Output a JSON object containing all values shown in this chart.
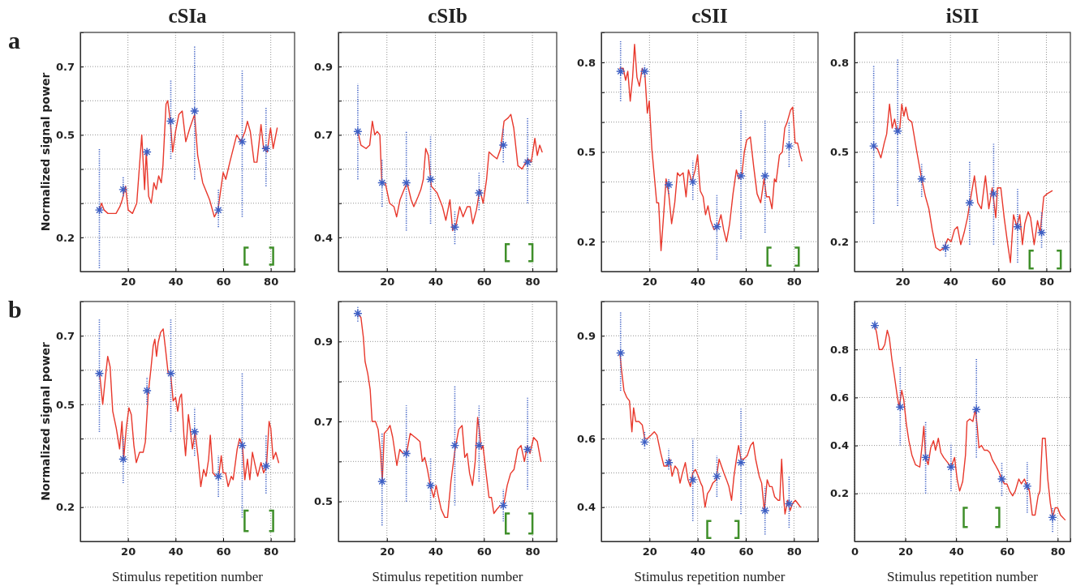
{
  "chart_data": [
    {
      "type": "line",
      "title": "cSIa",
      "ylabel": "Normalized signal power",
      "annotations": [
        "a"
      ],
      "grid": true,
      "xlim": [
        0,
        90
      ],
      "xticks": [
        20,
        40,
        60,
        80
      ],
      "ylim": [
        0.1,
        0.8
      ],
      "yticks": [
        0.2,
        {
          "value": 0.3,
          "label": null
        },
        {
          "value": 0.4,
          "label": null
        },
        0.5,
        {
          "value": 0.6,
          "label": null
        },
        0.7
      ],
      "series": [
        {
          "type": "line",
          "color": "#e8382c",
          "marker": "none",
          "x": [
            8,
            8.9,
            10,
            11.6,
            13,
            15,
            16.6,
            17.6,
            19,
            20.1,
            21.9,
            23.7,
            25.8,
            27,
            27.7,
            28.7,
            29.8,
            30.9,
            31.9,
            32.9,
            34,
            34.7,
            36,
            36.7,
            37.8,
            38.8,
            40,
            41.4,
            42.8,
            44.3,
            46,
            48,
            49.3,
            51.4,
            54.3,
            56.3,
            57.8,
            60,
            61.1,
            62.8,
            65.7,
            67.4,
            69.2,
            70.2,
            71.4,
            73,
            74.2,
            75.9,
            77,
            78.5,
            79.9,
            81,
            82.7
          ],
          "values": [
            0.28,
            0.3,
            0.28,
            0.27,
            0.27,
            0.27,
            0.29,
            0.31,
            0.35,
            0.28,
            0.27,
            0.3,
            0.5,
            0.34,
            0.45,
            0.32,
            0.3,
            0.36,
            0.34,
            0.38,
            0.36,
            0.41,
            0.59,
            0.6,
            0.54,
            0.45,
            0.51,
            0.56,
            0.57,
            0.48,
            0.52,
            0.56,
            0.44,
            0.36,
            0.31,
            0.26,
            0.28,
            0.39,
            0.37,
            0.42,
            0.5,
            0.48,
            0.51,
            0.54,
            0.51,
            0.42,
            0.42,
            0.53,
            0.46,
            0.45,
            0.52,
            0.46,
            0.52
          ]
        },
        {
          "type": "scatter",
          "color": "#3d5fc4",
          "marker": "cross",
          "x": [
            8,
            18,
            28,
            38,
            48,
            58,
            68,
            78
          ],
          "values": [
            0.28,
            0.34,
            0.45,
            0.54,
            0.57,
            0.28,
            0.48,
            0.46
          ],
          "errors": [
            [
              0.11,
              0.46
            ],
            [
              0.32,
              0.38
            ],
            [
              0.44,
              0.46
            ],
            [
              0.43,
              0.66
            ],
            [
              0.37,
              0.76
            ],
            [
              0.23,
              0.34
            ],
            [
              0.26,
              0.69
            ],
            [
              0.35,
              0.58
            ]
          ]
        }
      ]
    },
    {
      "type": "line",
      "title": "cSIb",
      "grid": true,
      "xlim": [
        0,
        90
      ],
      "xticks": [
        20,
        40,
        60,
        80
      ],
      "ylim": [
        0.3,
        1.0
      ],
      "yticks": [
        0.4,
        {
          "value": 0.5,
          "label": null
        },
        {
          "value": 0.6,
          "label": null
        },
        0.7,
        {
          "value": 0.8,
          "label": null
        },
        0.9
      ],
      "series": [
        {
          "type": "line",
          "color": "#e8382c",
          "marker": "none",
          "x": [
            8,
            9.3,
            11.4,
            12.9,
            14,
            15,
            16,
            17.1,
            17.9,
            19.3,
            21.1,
            22.9,
            24,
            25.4,
            27.1,
            28.3,
            30,
            31.1,
            32.9,
            34,
            35,
            36,
            37.1,
            38.3,
            40.7,
            42.9,
            44.3,
            46,
            47.1,
            48.6,
            50,
            51.4,
            53.1,
            54.3,
            55.4,
            56.9,
            58.3,
            59.7,
            61.1,
            62.1,
            63.6,
            65.4,
            66.9,
            68.3,
            70,
            71.1,
            72.3,
            74,
            75.7,
            78.1,
            79.5,
            81,
            82,
            83,
            84
          ],
          "values": [
            0.71,
            0.67,
            0.66,
            0.67,
            0.74,
            0.7,
            0.71,
            0.7,
            0.56,
            0.56,
            0.5,
            0.49,
            0.46,
            0.51,
            0.54,
            0.56,
            0.51,
            0.49,
            0.52,
            0.54,
            0.57,
            0.66,
            0.64,
            0.55,
            0.53,
            0.49,
            0.45,
            0.51,
            0.42,
            0.44,
            0.49,
            0.46,
            0.49,
            0.49,
            0.44,
            0.48,
            0.54,
            0.5,
            0.57,
            0.65,
            0.64,
            0.63,
            0.66,
            0.74,
            0.75,
            0.76,
            0.72,
            0.61,
            0.6,
            0.63,
            0.62,
            0.69,
            0.64,
            0.67,
            0.65
          ]
        },
        {
          "type": "scatter",
          "color": "#3d5fc4",
          "marker": "cross",
          "x": [
            8,
            18,
            28,
            38,
            48,
            58,
            68,
            78
          ],
          "values": [
            0.71,
            0.56,
            0.56,
            0.57,
            0.43,
            0.53,
            0.67,
            0.62
          ],
          "errors": [
            [
              0.57,
              0.85
            ],
            [
              0.49,
              0.63
            ],
            [
              0.42,
              0.71
            ],
            [
              0.44,
              0.7
            ],
            [
              0.38,
              0.48
            ],
            [
              0.48,
              0.59
            ],
            [
              0.62,
              0.72
            ],
            [
              0.5,
              0.75
            ]
          ]
        }
      ]
    },
    {
      "type": "line",
      "title": "cSII",
      "grid": true,
      "xlim": [
        0,
        90
      ],
      "xticks": [
        20,
        40,
        60,
        80
      ],
      "ylim": [
        0.1,
        0.9
      ],
      "yticks": [
        0.2,
        {
          "value": 0.3,
          "label": null
        },
        {
          "value": 0.4,
          "label": null
        },
        0.5,
        {
          "value": 0.6,
          "label": null
        },
        {
          "value": 0.7,
          "label": null
        },
        0.8
      ],
      "series": [
        {
          "type": "line",
          "color": "#e8382c",
          "marker": "none",
          "x": [
            7.7,
            9.1,
            10.1,
            11,
            12,
            13,
            13.8,
            14.8,
            15.8,
            17,
            18.1,
            19.1,
            19.9,
            21,
            22,
            23,
            23.8,
            24.8,
            25.8,
            26.9,
            28,
            29.2,
            30.5,
            31.6,
            32.6,
            34,
            35.2,
            36.2,
            37.6,
            39,
            40,
            41.1,
            42.3,
            43.3,
            44.3,
            45.4,
            46.8,
            48.3,
            49.7,
            50.8,
            52,
            53.3,
            54.7,
            56.1,
            57.1,
            58.3,
            59.4,
            60.4,
            61.9,
            63.3,
            64.7,
            66.2,
            67.6,
            68.6,
            69.8,
            70.9,
            71.9,
            72.6,
            74,
            75.2,
            76.2,
            77.2,
            78.6,
            79.5,
            80.5,
            81.5,
            82.6,
            83.3
          ],
          "values": [
            0.78,
            0.78,
            0.74,
            0.77,
            0.67,
            0.75,
            0.86,
            0.75,
            0.72,
            0.78,
            0.76,
            0.63,
            0.67,
            0.51,
            0.42,
            0.33,
            0.33,
            0.17,
            0.28,
            0.41,
            0.36,
            0.26,
            0.33,
            0.43,
            0.42,
            0.43,
            0.35,
            0.44,
            0.4,
            0.44,
            0.49,
            0.37,
            0.35,
            0.29,
            0.32,
            0.27,
            0.24,
            0.25,
            0.29,
            0.24,
            0.2,
            0.26,
            0.36,
            0.44,
            0.41,
            0.42,
            0.5,
            0.54,
            0.55,
            0.45,
            0.36,
            0.33,
            0.41,
            0.35,
            0.35,
            0.31,
            0.41,
            0.4,
            0.49,
            0.5,
            0.58,
            0.6,
            0.64,
            0.65,
            0.53,
            0.53,
            0.49,
            0.47
          ]
        },
        {
          "type": "scatter",
          "color": "#3d5fc4",
          "marker": "cross",
          "x": [
            8,
            18,
            28,
            38,
            48,
            58,
            68,
            78
          ],
          "values": [
            0.77,
            0.77,
            0.39,
            0.4,
            0.25,
            0.42,
            0.42,
            0.52
          ],
          "errors": [
            [
              0.67,
              0.87
            ],
            [
              0.75,
              0.79
            ],
            [
              0.36,
              0.41
            ],
            [
              0.34,
              0.47
            ],
            [
              0.14,
              0.36
            ],
            [
              0.21,
              0.64
            ],
            [
              0.23,
              0.61
            ],
            [
              0.45,
              0.6
            ]
          ]
        }
      ]
    },
    {
      "type": "line",
      "title": "iSII",
      "grid": true,
      "xlim": [
        0,
        90
      ],
      "xticks": [
        20,
        40,
        60,
        80
      ],
      "ylim": [
        0.1,
        0.9
      ],
      "yticks": [
        0.2,
        {
          "value": 0.3,
          "label": null
        },
        {
          "value": 0.4,
          "label": null
        },
        0.5,
        {
          "value": 0.6,
          "label": null
        },
        {
          "value": 0.7,
          "label": null
        },
        0.8
      ],
      "series": [
        {
          "type": "line",
          "color": "#e8382c",
          "marker": "none",
          "x": [
            7.9,
            9.6,
            11,
            12.4,
            13.4,
            14.6,
            15.7,
            16.7,
            17.7,
            18.9,
            19.7,
            20.6,
            21.4,
            22.4,
            23.9,
            26,
            28,
            29.6,
            31,
            32.4,
            33.9,
            35.7,
            37.4,
            38.9,
            40.3,
            41.7,
            42.9,
            44.3,
            45.7,
            47.1,
            48.1,
            50,
            51.4,
            52.9,
            54.6,
            56,
            57.4,
            58.9,
            59.6,
            61,
            62.4,
            63.9,
            65,
            66.3,
            67.7,
            68.9,
            70,
            71,
            72.4,
            73.4,
            74.9,
            76.3,
            77.4,
            78.9,
            80.3,
            82.4
          ],
          "values": [
            0.52,
            0.51,
            0.48,
            0.53,
            0.56,
            0.66,
            0.58,
            0.61,
            0.57,
            0.58,
            0.66,
            0.62,
            0.65,
            0.61,
            0.6,
            0.5,
            0.41,
            0.35,
            0.31,
            0.24,
            0.18,
            0.17,
            0.18,
            0.21,
            0.2,
            0.24,
            0.25,
            0.19,
            0.23,
            0.28,
            0.33,
            0.42,
            0.33,
            0.31,
            0.42,
            0.31,
            0.38,
            0.28,
            0.38,
            0.38,
            0.28,
            0.19,
            0.13,
            0.29,
            0.25,
            0.29,
            0.19,
            0.26,
            0.3,
            0.28,
            0.19,
            0.27,
            0.23,
            0.35,
            0.36,
            0.37
          ]
        },
        {
          "type": "scatter",
          "color": "#3d5fc4",
          "marker": "cross",
          "x": [
            8,
            18,
            28,
            38,
            48,
            58,
            68,
            78
          ],
          "values": [
            0.52,
            0.57,
            0.41,
            0.18,
            0.33,
            0.36,
            0.25,
            0.23
          ],
          "errors": [
            [
              0.26,
              0.79
            ],
            [
              0.32,
              0.81
            ],
            [
              0.35,
              0.46
            ],
            [
              0.15,
              0.2
            ],
            [
              0.19,
              0.47
            ],
            [
              0.19,
              0.53
            ],
            [
              0.13,
              0.38
            ],
            [
              0.18,
              0.3
            ]
          ]
        }
      ]
    },
    {
      "type": "line",
      "xlabel": "Stimulus repetition number",
      "ylabel": "Normalized signal power",
      "annotations": [
        "b"
      ],
      "grid": true,
      "xlim": [
        0,
        90
      ],
      "xticks": [
        20,
        40,
        60,
        80
      ],
      "ylim": [
        0.1,
        0.8
      ],
      "yticks": [
        0.2,
        {
          "value": 0.3,
          "label": null
        },
        {
          "value": 0.4,
          "label": null
        },
        0.5,
        {
          "value": 0.6,
          "label": null
        },
        0.7
      ],
      "series": [
        {
          "type": "line",
          "color": "#e8382c",
          "marker": "none",
          "x": [
            8.1,
            9.4,
            10.4,
            11.5,
            12.5,
            13.6,
            15.1,
            16.5,
            17.5,
            18.2,
            19.3,
            20.4,
            21.4,
            22.5,
            23.5,
            24.9,
            26.4,
            27.3,
            28.5,
            29.6,
            30.6,
            31.3,
            32,
            32.7,
            33.7,
            34.8,
            35.8,
            36.9,
            37.9,
            39,
            40,
            40.9,
            41.8,
            42.5,
            43.5,
            44.2,
            45.4,
            46.1,
            47.1,
            48.2,
            49.4,
            50.6,
            51.8,
            52.8,
            53.9,
            54.6,
            55.7,
            57,
            58.1,
            59.2,
            60,
            61,
            62.1,
            63.4,
            64.2,
            65.9,
            66.9,
            68.1,
            69.1,
            70.2,
            71.2,
            72.3,
            73.5,
            74.5,
            75.9,
            77,
            78.2,
            79.3,
            80,
            81,
            82.1,
            83.3
          ],
          "values": [
            0.59,
            0.5,
            0.57,
            0.64,
            0.61,
            0.48,
            0.43,
            0.37,
            0.45,
            0.34,
            0.43,
            0.49,
            0.47,
            0.38,
            0.33,
            0.36,
            0.36,
            0.39,
            0.53,
            0.6,
            0.67,
            0.69,
            0.64,
            0.68,
            0.71,
            0.72,
            0.66,
            0.59,
            0.59,
            0.51,
            0.52,
            0.48,
            0.52,
            0.53,
            0.41,
            0.35,
            0.47,
            0.43,
            0.37,
            0.42,
            0.35,
            0.26,
            0.31,
            0.29,
            0.34,
            0.41,
            0.3,
            0.29,
            0.29,
            0.35,
            0.3,
            0.3,
            0.26,
            0.29,
            0.28,
            0.37,
            0.4,
            0.38,
            0.28,
            0.34,
            0.28,
            0.36,
            0.32,
            0.29,
            0.33,
            0.3,
            0.32,
            0.45,
            0.43,
            0.34,
            0.36,
            0.33
          ]
        },
        {
          "type": "scatter",
          "color": "#3d5fc4",
          "marker": "cross",
          "x": [
            8,
            18,
            28,
            38,
            48,
            58,
            68,
            78
          ],
          "values": [
            0.59,
            0.34,
            0.54,
            0.59,
            0.42,
            0.29,
            0.38,
            0.32
          ],
          "errors": [
            [
              0.42,
              0.75
            ],
            [
              0.27,
              0.41
            ],
            [
              0.5,
              0.58
            ],
            [
              0.42,
              0.75
            ],
            [
              0.35,
              0.49
            ],
            [
              0.23,
              0.35
            ],
            [
              0.17,
              0.59
            ],
            [
              0.24,
              0.41
            ]
          ]
        }
      ]
    },
    {
      "type": "line",
      "xlabel": "Stimulus repetition number",
      "grid": true,
      "xlim": [
        0,
        90
      ],
      "xticks": [
        20,
        40,
        60,
        80
      ],
      "ylim": [
        0.4,
        1.0
      ],
      "yticks": [
        {
          "value": 0.5,
          "label": "0.5"
        },
        {
          "value": 0.6,
          "label": null
        },
        0.7,
        {
          "value": 0.8,
          "label": null
        },
        0.9
      ],
      "series": [
        {
          "type": "line",
          "color": "#e8382c",
          "marker": "none",
          "x": [
            7.9,
            9.3,
            10.3,
            11,
            12.1,
            13.1,
            13.9,
            15.3,
            16.4,
            17.4,
            18.1,
            18.9,
            20.3,
            21.3,
            22.4,
            24.1,
            25.3,
            26.7,
            28.1,
            29.6,
            31.7,
            33.6,
            34.6,
            35.6,
            36.7,
            37.9,
            39.3,
            40.3,
            41.3,
            42.4,
            43.9,
            45,
            46.4,
            48.1,
            49.6,
            51,
            52.1,
            53.1,
            54.1,
            55.3,
            56.4,
            57.4,
            58.1,
            58.9,
            59.6,
            60.7,
            62.1,
            63.1,
            64.1,
            65.3,
            66.7,
            68.1,
            69.6,
            71,
            72.4,
            73.9,
            75.3,
            76.7,
            77.9,
            79,
            80.5,
            82,
            83.5
          ],
          "values": [
            0.97,
            0.96,
            0.91,
            0.85,
            0.82,
            0.78,
            0.7,
            0.7,
            0.68,
            0.62,
            0.55,
            0.67,
            0.68,
            0.69,
            0.66,
            0.59,
            0.63,
            0.62,
            0.62,
            0.67,
            0.66,
            0.65,
            0.6,
            0.61,
            0.58,
            0.54,
            0.51,
            0.54,
            0.51,
            0.48,
            0.46,
            0.46,
            0.55,
            0.63,
            0.68,
            0.69,
            0.61,
            0.62,
            0.57,
            0.54,
            0.6,
            0.71,
            0.68,
            0.63,
            0.64,
            0.58,
            0.51,
            0.51,
            0.47,
            0.48,
            0.49,
            0.49,
            0.54,
            0.57,
            0.58,
            0.63,
            0.64,
            0.6,
            0.64,
            0.62,
            0.66,
            0.65,
            0.6
          ]
        },
        {
          "type": "scatter",
          "color": "#3d5fc4",
          "marker": "cross",
          "x": [
            8,
            18,
            28,
            38,
            48,
            58,
            68,
            78
          ],
          "values": [
            0.97,
            0.55,
            0.62,
            0.54,
            0.64,
            0.64,
            0.49,
            0.63
          ],
          "errors": [
            [
              0.95,
              0.99
            ],
            [
              0.44,
              0.67
            ],
            [
              0.5,
              0.74
            ],
            [
              0.48,
              0.61
            ],
            [
              0.49,
              0.79
            ],
            [
              0.55,
              0.74
            ],
            [
              0.45,
              0.53
            ],
            [
              0.53,
              0.76
            ]
          ]
        }
      ]
    },
    {
      "type": "line",
      "xlabel": "Stimulus repetition number",
      "grid": true,
      "xlim": [
        0,
        90
      ],
      "xticks": [
        20,
        40,
        60,
        80
      ],
      "ylim": [
        0.3,
        1.0
      ],
      "yticks": [
        0.4,
        {
          "value": 0.5,
          "label": null
        },
        0.6,
        {
          "value": 0.7,
          "label": null
        },
        {
          "value": 0.8,
          "label": null
        },
        0.9
      ],
      "series": [
        {
          "type": "line",
          "color": "#e8382c",
          "marker": "none",
          "x": [
            7.7,
            8.4,
            9.4,
            10.6,
            11.7,
            12.7,
            13.4,
            14.3,
            15.6,
            17,
            18,
            19.1,
            20.6,
            22,
            23.1,
            24.6,
            26,
            27.4,
            28.4,
            29.4,
            30.6,
            31.7,
            32.7,
            33.7,
            34.9,
            36,
            37,
            38,
            39.1,
            40.3,
            41.3,
            42,
            43.1,
            44.1,
            45.1,
            46.3,
            47.7,
            48.9,
            49.9,
            50.9,
            52,
            53,
            54.1,
            55.1,
            56.3,
            57,
            58,
            59.1,
            60.6,
            62,
            63.1,
            64.1,
            65.6,
            66.6,
            67.7,
            68.9,
            69.9,
            70.9,
            72,
            73.4,
            74.1,
            74.9,
            75.7,
            76.3,
            77.4,
            78.4,
            79.4,
            80.6,
            81.7,
            82.7
          ],
          "values": [
            0.85,
            0.8,
            0.74,
            0.72,
            0.71,
            0.62,
            0.69,
            0.65,
            0.65,
            0.64,
            0.6,
            0.6,
            0.61,
            0.62,
            0.61,
            0.56,
            0.52,
            0.52,
            0.54,
            0.49,
            0.52,
            0.51,
            0.47,
            0.5,
            0.53,
            0.48,
            0.46,
            0.5,
            0.51,
            0.49,
            0.47,
            0.46,
            0.4,
            0.44,
            0.45,
            0.47,
            0.48,
            0.54,
            0.52,
            0.5,
            0.48,
            0.46,
            0.42,
            0.49,
            0.55,
            0.58,
            0.54,
            0.54,
            0.55,
            0.58,
            0.59,
            0.54,
            0.49,
            0.47,
            0.39,
            0.48,
            0.46,
            0.46,
            0.43,
            0.42,
            0.42,
            0.54,
            0.43,
            0.38,
            0.42,
            0.39,
            0.41,
            0.42,
            0.41,
            0.4
          ]
        },
        {
          "type": "scatter",
          "color": "#3d5fc4",
          "marker": "cross",
          "x": [
            8,
            18,
            28,
            38,
            48,
            58,
            68,
            78
          ],
          "values": [
            0.85,
            0.59,
            0.53,
            0.48,
            0.49,
            0.53,
            0.39,
            0.41
          ],
          "errors": [
            [
              0.74,
              0.97
            ],
            [
              0.57,
              0.62
            ],
            [
              0.51,
              0.57
            ],
            [
              0.36,
              0.6
            ],
            [
              0.43,
              0.55
            ],
            [
              0.38,
              0.69
            ],
            [
              0.32,
              0.46
            ],
            [
              0.34,
              0.49
            ]
          ]
        }
      ]
    },
    {
      "type": "line",
      "xlabel": "Stimulus repetition number",
      "grid": true,
      "xlim": [
        0,
        85
      ],
      "xticks": [
        0,
        20,
        40,
        60,
        80
      ],
      "ylim": [
        0,
        1.0
      ],
      "yticks": [
        0.2,
        0.4,
        0.6,
        0.8
      ],
      "series": [
        {
          "type": "line",
          "color": "#e8382c",
          "marker": "none",
          "x": [
            8,
            8.7,
            9.7,
            10.9,
            11.9,
            12.9,
            13.7,
            14.7,
            15.7,
            16.9,
            17.6,
            18.6,
            19.4,
            20.4,
            21.4,
            22.6,
            24,
            25.7,
            26.6,
            27.3,
            28,
            29,
            30,
            31.1,
            31.9,
            33,
            34,
            35.1,
            36.6,
            38,
            39.4,
            40.4,
            41.4,
            42.6,
            43.7,
            44.3,
            45.4,
            46.6,
            47.6,
            48.3,
            49,
            50,
            51.1,
            52.3,
            53.3,
            54.3,
            55.4,
            56.9,
            58,
            59,
            60,
            61.1,
            62.3,
            63.3,
            64.7,
            65.7,
            66.9,
            68,
            68.9,
            70,
            71.1,
            72.3,
            73,
            74,
            75.1,
            76.1,
            77.1,
            78,
            79,
            80,
            81.1,
            82.9
          ],
          "values": [
            0.9,
            0.87,
            0.8,
            0.8,
            0.82,
            0.88,
            0.85,
            0.76,
            0.69,
            0.6,
            0.56,
            0.63,
            0.59,
            0.49,
            0.42,
            0.36,
            0.32,
            0.31,
            0.4,
            0.48,
            0.35,
            0.32,
            0.39,
            0.42,
            0.38,
            0.43,
            0.37,
            0.35,
            0.33,
            0.31,
            0.35,
            0.26,
            0.21,
            0.25,
            0.36,
            0.5,
            0.51,
            0.5,
            0.55,
            0.48,
            0.39,
            0.4,
            0.38,
            0.38,
            0.37,
            0.34,
            0.32,
            0.29,
            0.26,
            0.24,
            0.24,
            0.21,
            0.19,
            0.21,
            0.26,
            0.24,
            0.26,
            0.23,
            0.21,
            0.11,
            0.11,
            0.19,
            0.21,
            0.43,
            0.43,
            0.26,
            0.16,
            0.1,
            0.14,
            0.14,
            0.11,
            0.09
          ]
        },
        {
          "type": "scatter",
          "color": "#3d5fc4",
          "marker": "cross",
          "x": [
            8,
            18,
            28,
            38,
            48,
            58,
            68,
            78
          ],
          "values": [
            0.9,
            0.56,
            0.35,
            0.31,
            0.55,
            0.26,
            0.23,
            0.1
          ],
          "errors": [
            [
              0.89,
              0.92
            ],
            [
              0.4,
              0.73
            ],
            [
              0.2,
              0.5
            ],
            [
              0.21,
              0.41
            ],
            [
              0.35,
              0.76
            ],
            [
              0.19,
              0.33
            ],
            [
              0.12,
              0.33
            ],
            [
              0.04,
              0.14
            ]
          ]
        }
      ]
    }
  ]
}
